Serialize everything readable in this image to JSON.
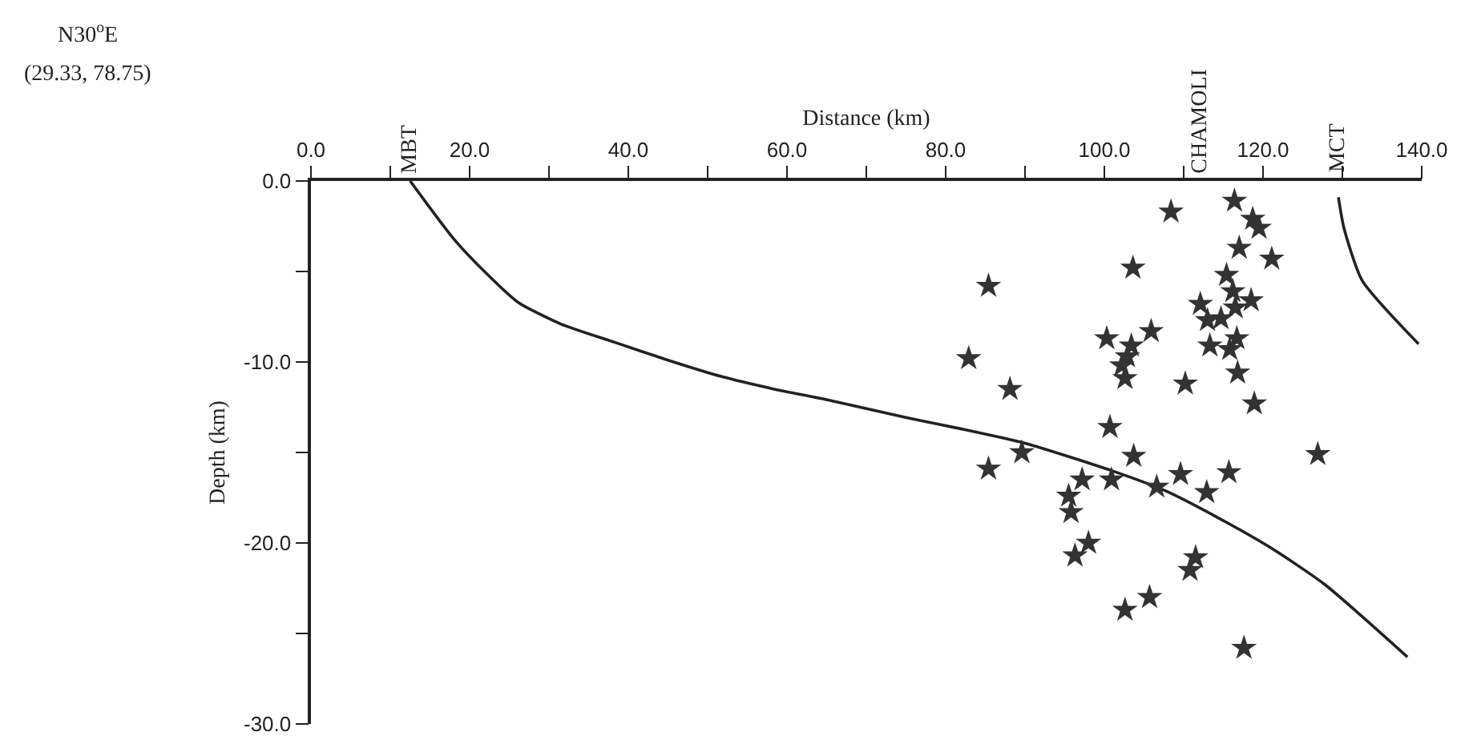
{
  "chart_data": {
    "type": "scatter",
    "xlabel": "Distance (km)",
    "ylabel": "Depth (km)",
    "xlim": [
      0,
      140
    ],
    "ylim": [
      -30,
      0
    ],
    "xticks": [
      {
        "value": 0,
        "label": "0.0"
      },
      {
        "value": 10,
        "label": null
      },
      {
        "value": 20,
        "label": "20.0"
      },
      {
        "value": 30,
        "label": null
      },
      {
        "value": 40,
        "label": "40.0"
      },
      {
        "value": 50,
        "label": null
      },
      {
        "value": 60,
        "label": "60.0"
      },
      {
        "value": 70,
        "label": null
      },
      {
        "value": 80,
        "label": "80.0"
      },
      {
        "value": 90,
        "label": null
      },
      {
        "value": 100,
        "label": "100.0"
      },
      {
        "value": 110,
        "label": null
      },
      {
        "value": 120,
        "label": "120.0"
      },
      {
        "value": 130,
        "label": null
      },
      {
        "value": 140,
        "label": "140.0"
      }
    ],
    "yticks": [
      {
        "value": 0,
        "label": "0.0"
      },
      {
        "value": -5,
        "label": null
      },
      {
        "value": -10,
        "label": "-10.0"
      },
      {
        "value": -15,
        "label": null
      },
      {
        "value": -20,
        "label": "-20.0"
      },
      {
        "value": -25,
        "label": null
      },
      {
        "value": -30,
        "label": "-30.0"
      }
    ],
    "annotations": [
      "N30$^{o}$E",
      "(29.33, 78.75)",
      {
        "text": "MBT",
        "x": 12.5,
        "y": 0
      },
      "CHAMOLI",
      "MCT"
    ],
    "series": [
      {
        "type": "line",
        "color": "#222222",
        "line_style": "solid",
        "x": [
          12.5,
          18.0,
          22.1,
          26.1,
          31.5,
          38.2,
          45.0,
          51.7,
          58.4,
          65.2,
          75.3,
          82.0,
          90.1,
          100.9,
          107.6,
          114.3,
          121.1,
          127.8,
          138.2
        ],
        "values": [
          0,
          -3.2,
          -5.1,
          -6.7,
          -7.9,
          -8.9,
          -9.9,
          -10.8,
          -11.5,
          -12.1,
          -13.1,
          -13.7,
          -14.5,
          -16.0,
          -17.1,
          -18.6,
          -20.3,
          -22.3,
          -26.3
        ]
      },
      {
        "type": "line",
        "color": "#222222",
        "line_style": "solid",
        "x": [
          129.5,
          130.2,
          132.5,
          139.6
        ],
        "values": [
          -0.9,
          -2.6,
          -5.5,
          -9.0
        ]
      },
      {
        "color": "#333333",
        "marker": "star",
        "x": [
          108.4,
          116.4,
          118.7,
          119.5,
          117.0,
          121.1,
          103.6,
          85.4,
          115.4,
          116.2,
          118.5,
          112.1,
          116.5,
          113.0,
          114.7,
          105.9,
          100.3,
          103.4,
          116.7,
          113.3,
          115.8,
          102.9,
          102.2,
          102.6,
          82.9,
          116.8,
          88.1,
          110.2,
          118.9,
          100.7,
          89.6,
          85.4,
          103.7,
          126.9,
          97.2,
          100.9,
          109.6,
          115.7,
          106.6,
          112.9,
          95.5,
          95.8,
          98.0,
          96.3,
          111.5,
          110.8,
          105.7,
          102.6,
          117.6
        ],
        "values": [
          -1.7,
          -1.1,
          -2.1,
          -2.6,
          -3.7,
          -4.3,
          -4.8,
          -5.8,
          -5.2,
          -6.1,
          -6.6,
          -6.8,
          -7.0,
          -7.7,
          -7.6,
          -8.3,
          -8.7,
          -9.1,
          -8.7,
          -9.1,
          -9.3,
          -9.7,
          -10.2,
          -10.9,
          -9.8,
          -10.6,
          -11.5,
          -11.2,
          -12.3,
          -13.6,
          -15.0,
          -15.9,
          -15.2,
          -15.1,
          -16.5,
          -16.5,
          -16.2,
          -16.1,
          -16.9,
          -17.2,
          -17.4,
          -18.3,
          -20.0,
          -20.7,
          -20.8,
          -21.5,
          -23.0,
          -23.7,
          -25.8
        ]
      }
    ]
  }
}
